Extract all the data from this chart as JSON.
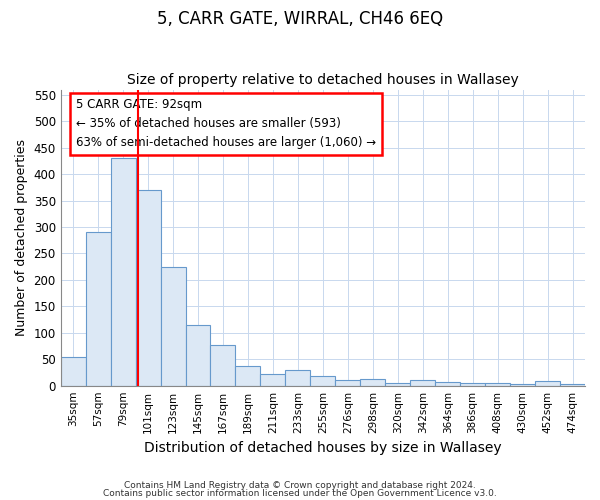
{
  "title": "5, CARR GATE, WIRRAL, CH46 6EQ",
  "subtitle": "Size of property relative to detached houses in Wallasey",
  "xlabel": "Distribution of detached houses by size in Wallasey",
  "ylabel": "Number of detached properties",
  "bar_color": "#dce8f5",
  "bar_edge_color": "#6699cc",
  "categories": [
    "35sqm",
    "57sqm",
    "79sqm",
    "101sqm",
    "123sqm",
    "145sqm",
    "167sqm",
    "189sqm",
    "211sqm",
    "233sqm",
    "255sqm",
    "276sqm",
    "298sqm",
    "320sqm",
    "342sqm",
    "364sqm",
    "386sqm",
    "408sqm",
    "430sqm",
    "452sqm",
    "474sqm"
  ],
  "values": [
    55,
    290,
    430,
    370,
    225,
    115,
    77,
    38,
    22,
    30,
    18,
    10,
    12,
    5,
    10,
    7,
    5,
    5,
    4,
    8,
    4
  ],
  "ylim": [
    0,
    560
  ],
  "yticks": [
    0,
    50,
    100,
    150,
    200,
    250,
    300,
    350,
    400,
    450,
    500,
    550
  ],
  "red_line_x": 2.59,
  "annotation_text": "5 CARR GATE: 92sqm\n← 35% of detached houses are smaller (593)\n63% of semi-detached houses are larger (1,060) →",
  "footer1": "Contains HM Land Registry data © Crown copyright and database right 2024.",
  "footer2": "Contains public sector information licensed under the Open Government Licence v3.0.",
  "bg_color": "#ffffff",
  "grid_color": "#c8d8ee",
  "title_fontsize": 12,
  "subtitle_fontsize": 10,
  "xlabel_fontsize": 10,
  "ylabel_fontsize": 9
}
